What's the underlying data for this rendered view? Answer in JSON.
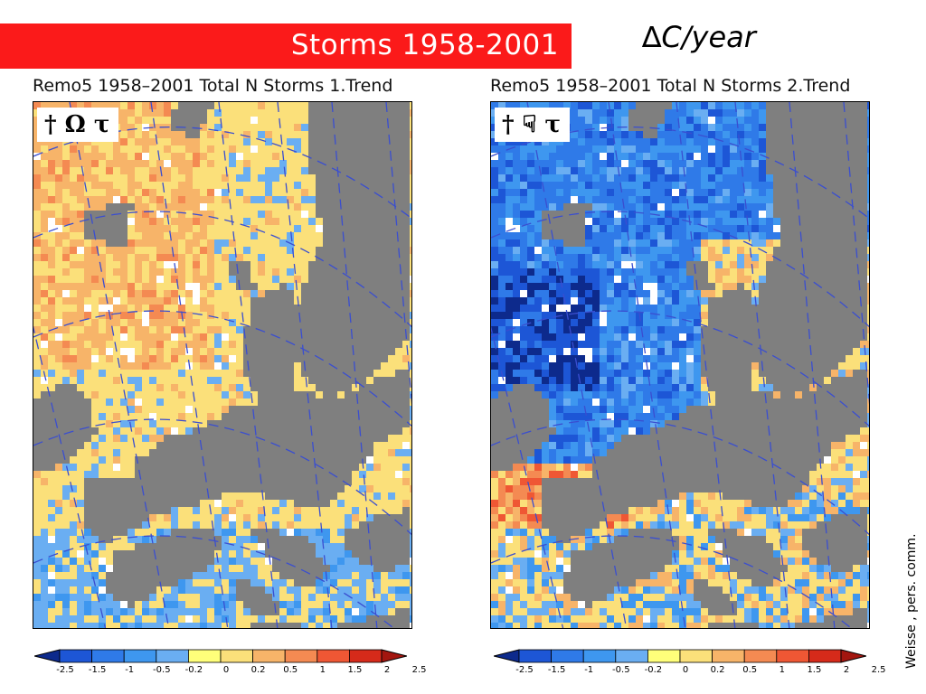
{
  "slide": {
    "banner_title": "Storms 1958-2001",
    "unit_label": "∆C/year",
    "credit": "Weisse , pers. comm."
  },
  "panels": [
    {
      "title": "Remo5 1958–2001 Total N Storms 1.Trend",
      "badge": "† Ω τ"
    },
    {
      "title": "Remo5 1958–2001 Total N Storms 2.Trend",
      "badge": "† ☟ τ"
    }
  ],
  "legend": {
    "ticks": [
      "-2.5",
      "-1.5",
      "-1",
      "-0.5",
      "-0.2",
      "0",
      "0.2",
      "0.5",
      "1",
      "1.5",
      "2",
      "2.5"
    ],
    "colors": [
      "#0d2a8c",
      "#1d56d6",
      "#2f7ae8",
      "#3e97ef",
      "#6aaef2",
      "#ffff7a",
      "#fbe07a",
      "#f7b469",
      "#f48a52",
      "#ef5734",
      "#d62a1a",
      "#a3160f"
    ]
  },
  "colors": {
    "banner": "#fb1a1a",
    "land": "#7f7f7f",
    "graticule": "#3a4ed0"
  }
}
